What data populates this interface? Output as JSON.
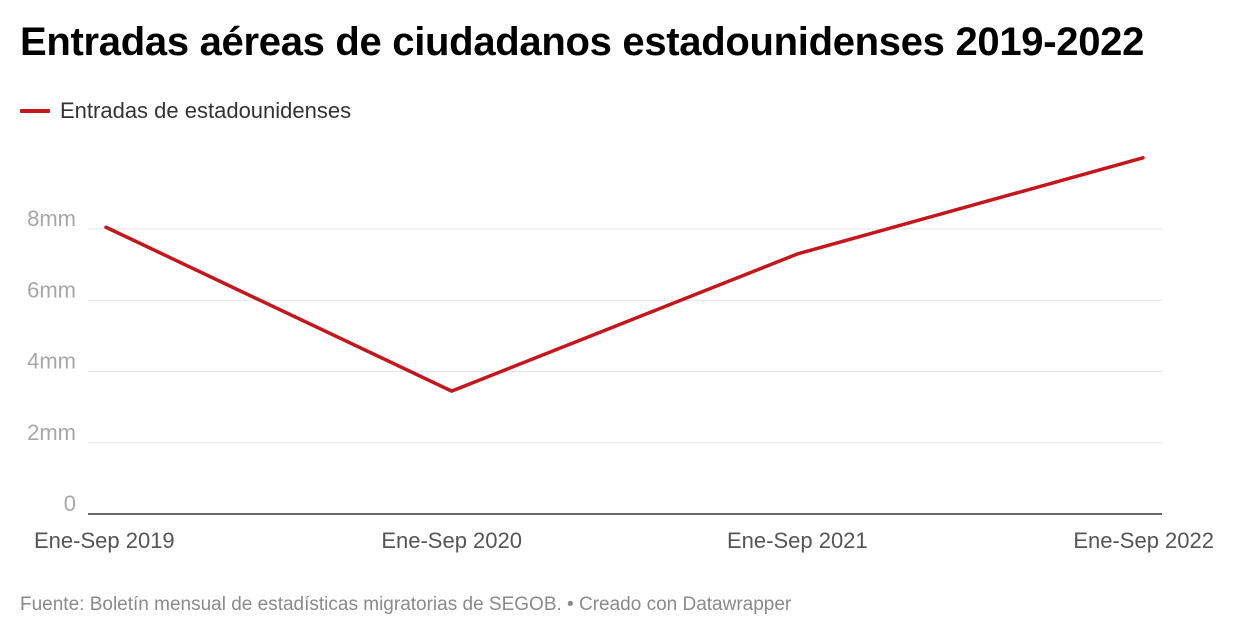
{
  "chart_data": {
    "type": "line",
    "title": "Entradas aéreas de ciudadanos estadounidenses 2019-2022",
    "categories": [
      "Ene-Sep 2019",
      "Ene-Sep 2020",
      "Ene-Sep 2021",
      "Ene-Sep 2022"
    ],
    "series": [
      {
        "name": "Entradas de estadounidenses",
        "values": [
          8.05,
          3.45,
          7.3,
          10.0
        ]
      }
    ],
    "ylim": [
      0,
      10.5
    ],
    "yticks": [
      0,
      2,
      4,
      6,
      8
    ],
    "ytick_labels": [
      "0",
      "2mm",
      "4mm",
      "6mm",
      "8mm"
    ],
    "grid": true,
    "legend_position": "top-left",
    "line_color": "#c4161c"
  },
  "footer": "Fuente: Boletín mensual de estadísticas migratorias de SEGOB. • Creado con Datawrapper"
}
